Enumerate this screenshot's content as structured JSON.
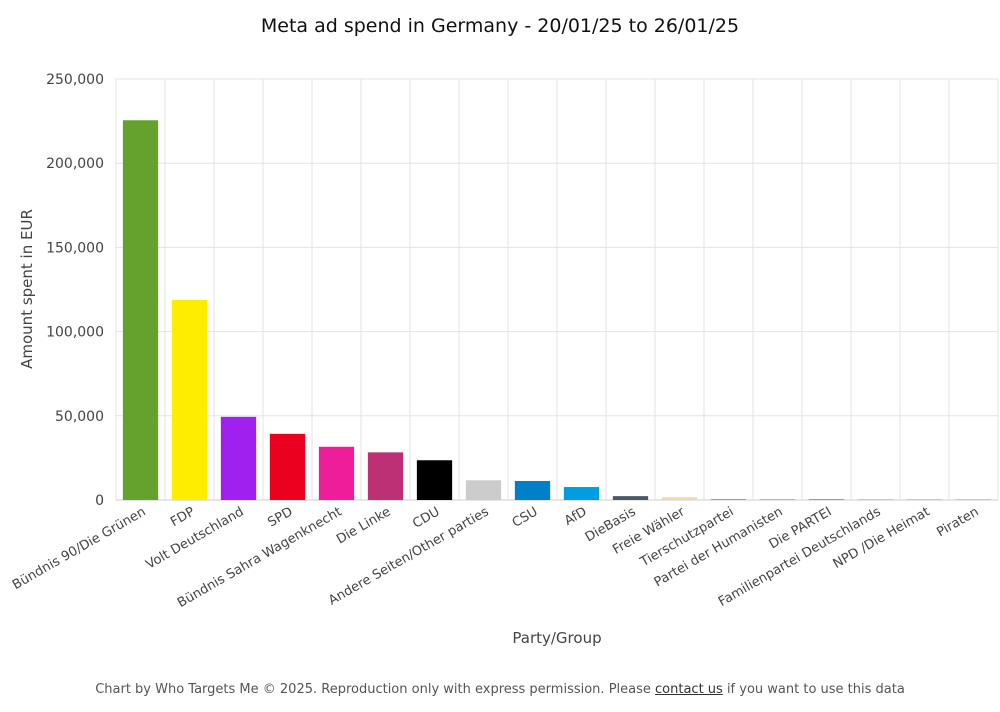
{
  "chart_data": {
    "type": "bar",
    "title": "Meta ad spend in Germany - 20/01/25 to 26/01/25",
    "xlabel": "Party/Group",
    "ylabel": "Amount spent in EUR",
    "ylim": [
      0,
      250000
    ],
    "yticks": [
      0,
      50000,
      100000,
      150000,
      200000,
      250000
    ],
    "ytick_labels": [
      "0",
      "50,000",
      "100,000",
      "150,000",
      "200,000",
      "250,000"
    ],
    "grid": true,
    "legend": "none",
    "categories": [
      "Bündnis 90/Die Grünen",
      "FDP",
      "Volt Deutschland",
      "SPD",
      "Bündnis Sahra Wagenknecht",
      "Die Linke",
      "CDU",
      "Andere Seiten/Other parties",
      "CSU",
      "AfD",
      "DieBasis",
      "Freie Wähler",
      "Tierschutzpartei",
      "Partei der Humanisten",
      "Die PARTEI",
      "Familienpartei Deutschlands",
      "NPD /Die Heimat",
      "Piraten"
    ],
    "values": [
      225500,
      118800,
      49400,
      39300,
      31600,
      28300,
      23600,
      11700,
      11300,
      7700,
      2300,
      1600,
      500,
      400,
      300,
      100,
      100,
      50
    ],
    "colors": [
      "#64a12d",
      "#ffed00",
      "#a020f0",
      "#eb001f",
      "#ee1d9a",
      "#be3075",
      "#000000",
      "#cccccc",
      "#0080c8",
      "#009ee0",
      "#4a5a63",
      "#f0d8a8",
      "#8fa8b8",
      "#a0c0d8",
      "#e08080",
      "#c8c8c8",
      "#c8c8c8",
      "#c8c8c8"
    ]
  },
  "footer": {
    "text_before": "Chart by Who Targets Me © 2025. Reproduction only with express permission. Please ",
    "link_text": "contact us",
    "text_after": " if you want to use this data"
  }
}
